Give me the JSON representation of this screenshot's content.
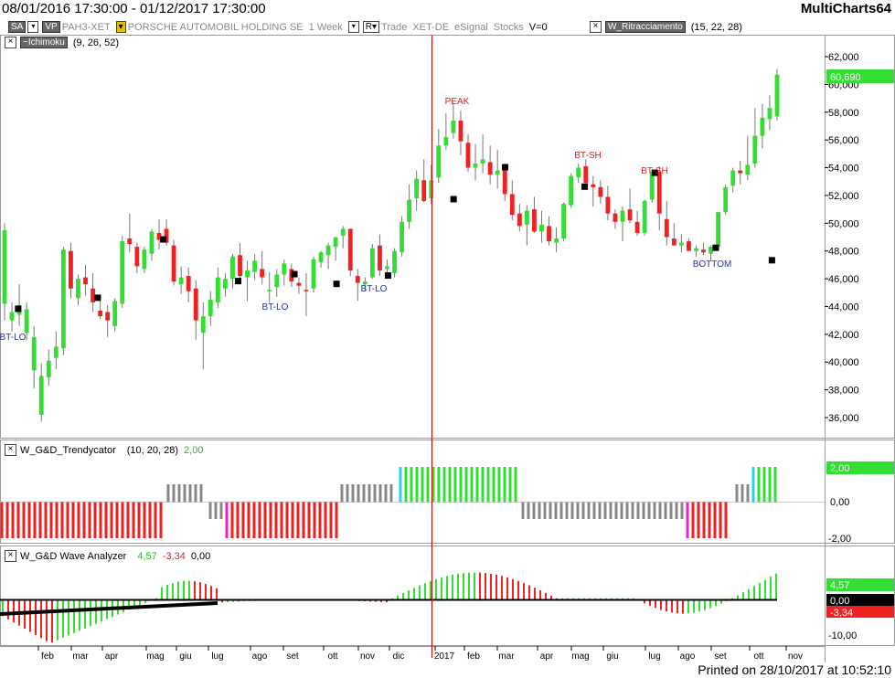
{
  "window": {
    "date_range": "08/01/2016 17:30:00 - 01/12/2017 17:30:00",
    "app_name": "MultiCharts64",
    "printed": "Printed on 28/10/2017 at 10:52:10"
  },
  "toolbar": {
    "sa_label": "SA",
    "vp_label": "VP",
    "symbol": "PAH3-XET",
    "instrument": "PORSCHE AUTOMOBIL HOLDING SE",
    "interval": "1 Week",
    "r_label": "R",
    "data_type": "Trade",
    "exchange": "XET-DE",
    "feed": "eSignal",
    "category": "Stocks",
    "volume": "V=0",
    "indicator_ritr": "W_Ritracciamento",
    "indicator_ritr_params": "(15, 22, 28)",
    "indicator_ichimoku": "~Ichimoku",
    "indicator_ichimoku_params": "(9, 26, 52)"
  },
  "colors": {
    "up": "#33dd33",
    "down": "#ee2222",
    "grey": "#888888",
    "cyan": "#33ccee",
    "magenta": "#ee22cc",
    "axis_line": "#cc0000"
  },
  "panels": {
    "trendycator": {
      "name": "W_G&D_Trendycator",
      "params": "(10, 20, 28)",
      "value": "2,00",
      "axis_labels": [
        "2,00",
        "0,00",
        "-2,00"
      ]
    },
    "wave": {
      "name": "W_G&D Wave Analyzer",
      "v1": "4,57",
      "v2": "-3,34",
      "v3": "0,00",
      "axis_labels": [
        "4,57",
        "0,00",
        "-3,34",
        "-10,00"
      ]
    }
  },
  "chart_data": {
    "type": "candlestick",
    "price_axis_labels": [
      "62,000",
      "60,000",
      "58,000",
      "56,000",
      "54,000",
      "52,000",
      "50,000",
      "48,000",
      "46,000",
      "44,000",
      "42,000",
      "40,000",
      "38,000",
      "36,000"
    ],
    "last_price": "60,690",
    "months": [
      "feb",
      "mar",
      "apr",
      "mag",
      "giu",
      "lug",
      "ago",
      "set",
      "ott",
      "nov",
      "dic",
      "2017",
      "feb",
      "mar",
      "apr",
      "mag",
      "giu",
      "lug",
      "ago",
      "set",
      "ott",
      "nov"
    ],
    "annotations": [
      "BT-LO",
      "BT-LO",
      "BT-LO",
      "PEAK",
      "BT-SH",
      "BT-SH",
      "BOTTOM"
    ]
  }
}
